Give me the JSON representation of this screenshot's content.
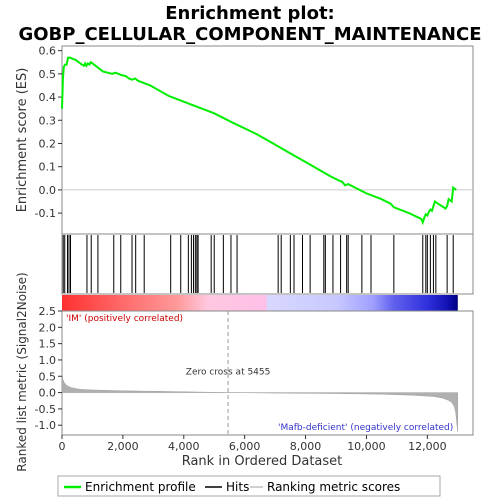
{
  "chart_data": {
    "type": "line",
    "title_line1": "Enrichment plot:",
    "title_line2": "GOBP_CELLULAR_COMPONENT_MAINTENANCE",
    "es_panel": {
      "ylabel": "Enrichment score (ES)",
      "ylim": [
        -0.19,
        0.62
      ],
      "y_ticks": [
        -0.1,
        0.0,
        0.1,
        0.2,
        0.3,
        0.4,
        0.5,
        0.6
      ],
      "y_tick_labels": [
        "-0.1",
        "0.0",
        "0.1",
        "0.2",
        "0.3",
        "0.4",
        "0.5",
        "0.6"
      ],
      "line_color": "#00ee00",
      "series": {
        "name": "Enrichment profile",
        "x": [
          0,
          30,
          60,
          100,
          150,
          200,
          260,
          350,
          450,
          550,
          650,
          720,
          760,
          800,
          850,
          900,
          950,
          1000,
          1100,
          1200,
          1350,
          1500,
          1650,
          1750,
          1850,
          1950,
          2100,
          2200,
          2300,
          2400,
          2500,
          2600,
          2700,
          2900,
          3100,
          3300,
          3500,
          3600,
          3700,
          3900,
          4100,
          4200,
          4300,
          4400,
          4500,
          4700,
          5000,
          5300,
          5600,
          6000,
          6400,
          6800,
          7200,
          7600,
          8000,
          8400,
          8800,
          9100,
          9200,
          9300,
          9400,
          9700,
          10000,
          10200,
          10500,
          10800,
          10900,
          11000,
          11400,
          11800,
          11850,
          11900,
          11950,
          12000,
          12050,
          12100,
          12150,
          12200,
          12250,
          12300,
          12600,
          12650,
          12700,
          12750,
          12800,
          12850,
          12900,
          12950
        ],
        "y": [
          0.35,
          0.48,
          0.53,
          0.54,
          0.54,
          0.57,
          0.57,
          0.565,
          0.56,
          0.55,
          0.54,
          0.535,
          0.545,
          0.535,
          0.545,
          0.54,
          0.55,
          0.545,
          0.535,
          0.525,
          0.51,
          0.505,
          0.5,
          0.505,
          0.5,
          0.495,
          0.49,
          0.48,
          0.475,
          0.48,
          0.47,
          0.465,
          0.46,
          0.45,
          0.435,
          0.42,
          0.405,
          0.4,
          0.395,
          0.385,
          0.375,
          0.37,
          0.365,
          0.36,
          0.355,
          0.345,
          0.33,
          0.31,
          0.29,
          0.265,
          0.24,
          0.21,
          0.18,
          0.15,
          0.12,
          0.09,
          0.06,
          0.04,
          0.035,
          0.02,
          0.025,
          0.005,
          -0.015,
          -0.025,
          -0.04,
          -0.06,
          -0.075,
          -0.08,
          -0.1,
          -0.125,
          -0.14,
          -0.12,
          -0.105,
          -0.11,
          -0.095,
          -0.085,
          -0.09,
          -0.07,
          -0.05,
          -0.055,
          -0.08,
          -0.07,
          -0.04,
          -0.045,
          -0.05,
          0.01,
          0.005,
          0.0
        ]
      }
    },
    "hits": {
      "name": "Hits",
      "positions": [
        40,
        90,
        180,
        230,
        280,
        820,
        960,
        1180,
        1700,
        1930,
        2300,
        2420,
        2700,
        3570,
        3900,
        4150,
        4250,
        4320,
        4380,
        4430,
        4470,
        4900,
        5000,
        5300,
        5550,
        5750,
        7100,
        7200,
        7500,
        7620,
        7900,
        8150,
        8600,
        8650,
        8900,
        9150,
        9350,
        9400,
        9850,
        10150,
        10900,
        11850,
        11950,
        12000,
        12100,
        12200,
        12280,
        12650,
        12850
      ]
    },
    "ranked_metric": {
      "name": "Ranking metric scores",
      "ylabel": "Ranked list metric (Signal2Noise)",
      "ylim": [
        -1.3,
        2.5
      ],
      "y_ticks": [
        -1.0,
        -0.5,
        0.0,
        0.5,
        1.0,
        1.5,
        2.0,
        2.5
      ],
      "y_tick_labels": [
        "-1.0",
        "-0.5",
        "0.0",
        "0.5",
        "1.0",
        "1.5",
        "2.0",
        "2.5"
      ],
      "x": [
        0,
        30,
        80,
        150,
        300,
        600,
        1000,
        2000,
        3000,
        4000,
        5455,
        7000,
        9000,
        10500,
        11500,
        12200,
        12500,
        12700,
        12800,
        12880,
        12930,
        12970,
        12999
      ],
      "y": [
        0.65,
        0.4,
        0.3,
        0.22,
        0.15,
        0.1,
        0.08,
        0.055,
        0.04,
        0.025,
        0.0,
        -0.015,
        -0.03,
        -0.05,
        -0.08,
        -0.12,
        -0.17,
        -0.24,
        -0.3,
        -0.42,
        -0.6,
        -0.95,
        -1.2
      ],
      "fill_color": "#b0b0b0"
    },
    "x_axis": {
      "xlabel": "Rank in Ordered Dataset",
      "xlim": [
        0,
        13500
      ],
      "n_genes": 13000,
      "ticks": [
        0,
        2000,
        4000,
        6000,
        8000,
        10000,
        12000
      ],
      "tick_labels": [
        "0",
        "2,000",
        "4,000",
        "6,000",
        "8,000",
        "10,000",
        "12,000"
      ]
    },
    "zero_cross": {
      "position": 5455,
      "label": "Zero cross at 5455"
    },
    "annotations": {
      "positive": "'IM' (positively correlated)",
      "negative": "'Mafb-deficient' (negatively correlated)",
      "positive_color": "#cc0000",
      "negative_color": "#3333cc"
    },
    "colorbar": {
      "stops": [
        {
          "pos": 0,
          "color": "#ff3030"
        },
        {
          "pos": 2000,
          "color": "#ff6a6a"
        },
        {
          "pos": 3800,
          "color": "#ff9a9a"
        },
        {
          "pos": 4800,
          "color": "#ffc8e0"
        },
        {
          "pos": 6700,
          "color": "#ffc0e8"
        },
        {
          "pos": 6750,
          "color": "#d8d8ff"
        },
        {
          "pos": 9000,
          "color": "#c8c8ff"
        },
        {
          "pos": 10200,
          "color": "#a0a0ff"
        },
        {
          "pos": 10900,
          "color": "#6060ee"
        },
        {
          "pos": 12000,
          "color": "#3030dd"
        },
        {
          "pos": 12700,
          "color": "#1010b0"
        },
        {
          "pos": 13000,
          "color": "#000080"
        }
      ]
    },
    "legend": {
      "items": [
        {
          "label": "Enrichment profile",
          "color": "#00ee00"
        },
        {
          "label": "Hits",
          "color": "#000000"
        },
        {
          "label": "Ranking metric scores",
          "color": "#c0c0c0"
        }
      ]
    }
  }
}
